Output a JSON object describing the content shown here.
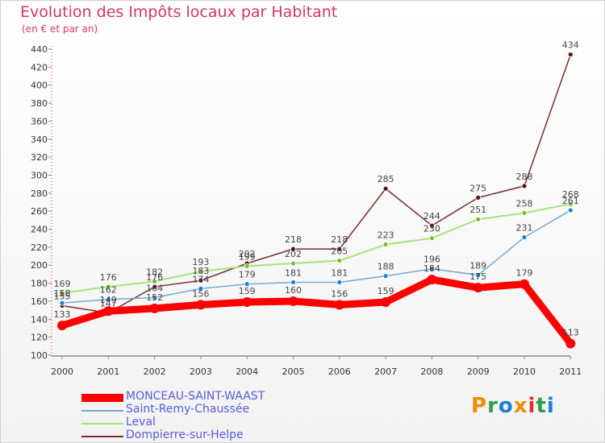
{
  "title": "Evolution des Impôts locaux par Habitant",
  "subtitle": "(en € et par an)",
  "logo": {
    "letters": [
      "P",
      "r",
      "o",
      "x",
      "i",
      "t",
      "i"
    ],
    "colors": [
      "#f08c00",
      "#2f9e44",
      "#1c7ed6",
      "#f08c00",
      "#e03131",
      "#2f9e44",
      "#1c7ed6"
    ]
  },
  "chart_data": {
    "type": "line",
    "title": "Evolution des Impôts locaux par Habitant",
    "subtitle": "(en € et par an)",
    "xlabel": "",
    "ylabel": "",
    "x": [
      "2000",
      "2001",
      "2002",
      "2003",
      "2004",
      "2005",
      "2006",
      "2007",
      "2008",
      "2009",
      "2010",
      "2011"
    ],
    "ylim": [
      100,
      440
    ],
    "yticks": [
      100,
      120,
      140,
      160,
      180,
      200,
      220,
      240,
      260,
      280,
      300,
      320,
      340,
      360,
      380,
      400,
      420,
      440
    ],
    "grid": false,
    "legend_position": "bottom-left",
    "series": [
      {
        "name": "MONCEAU-SAINT-WAAST",
        "color": "#ff0000",
        "values": [
          133,
          149,
          152,
          156,
          159,
          160,
          156,
          159,
          184,
          175,
          179,
          113
        ],
        "labels": [
          "133",
          "149",
          "152",
          "156",
          "159",
          "160",
          "156",
          "159",
          "184",
          "175",
          "179",
          "113"
        ]
      },
      {
        "name": "Saint-Remy-Chaussée",
        "color": "#74a9cf",
        "values": [
          158,
          162,
          164,
          174,
          179,
          181,
          181,
          188,
          196,
          189,
          231,
          261
        ],
        "labels": [
          "158",
          "162",
          "164",
          "174",
          "179",
          "181",
          "181",
          "188",
          "196",
          "189",
          "231",
          "261"
        ]
      },
      {
        "name": "Leval",
        "color": "#a9e17a",
        "values": [
          169,
          176,
          182,
          193,
          199,
          202,
          205,
          223,
          230,
          251,
          258,
          268
        ],
        "labels": [
          "169",
          "176",
          "182",
          "193",
          "199",
          "202",
          "205",
          "223",
          "230",
          "251",
          "258",
          "268"
        ]
      },
      {
        "name": "Dompierre-sur-Helpe",
        "color": "#7a2e2e",
        "values": [
          155,
          147,
          176,
          183,
          202,
          218,
          218,
          285,
          244,
          275,
          288,
          434
        ],
        "labels": [
          "155",
          "147",
          "176",
          "183",
          "202",
          "218",
          "218",
          "285",
          "244",
          "275",
          "288",
          "434"
        ]
      }
    ]
  }
}
